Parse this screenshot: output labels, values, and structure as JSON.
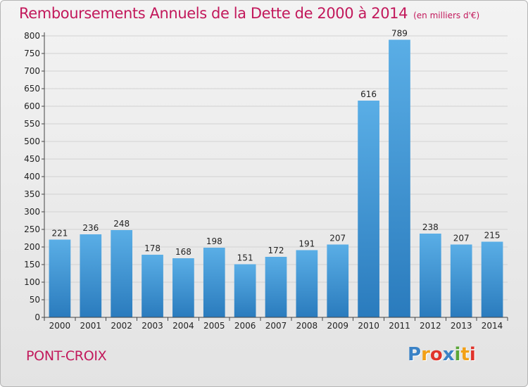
{
  "chart_data": {
    "type": "bar",
    "title": "Remboursements Annuels de la Dette de 2000 à 2014",
    "unit_note": "(en milliers d'€)",
    "xlabel": "",
    "ylabel": "",
    "categories": [
      "2000",
      "2001",
      "2002",
      "2003",
      "2004",
      "2005",
      "2006",
      "2007",
      "2008",
      "2009",
      "2010",
      "2011",
      "2012",
      "2013",
      "2014"
    ],
    "values": [
      221,
      236,
      248,
      178,
      168,
      198,
      151,
      172,
      191,
      207,
      616,
      789,
      238,
      207,
      215
    ],
    "ylim": [
      0,
      800
    ],
    "yticks": [
      0,
      50,
      100,
      150,
      200,
      250,
      300,
      350,
      400,
      450,
      500,
      550,
      600,
      650,
      700,
      750,
      800
    ],
    "grid": true,
    "legend": "none",
    "bar_color_top": "#5aaee6",
    "bar_color_bottom": "#2a7bbd"
  },
  "footer": {
    "town": "PONT-CROIX",
    "logo": [
      "P",
      "r",
      "o",
      "x",
      "i",
      "t",
      "i"
    ]
  },
  "colors": {
    "accent": "#c2185b"
  }
}
